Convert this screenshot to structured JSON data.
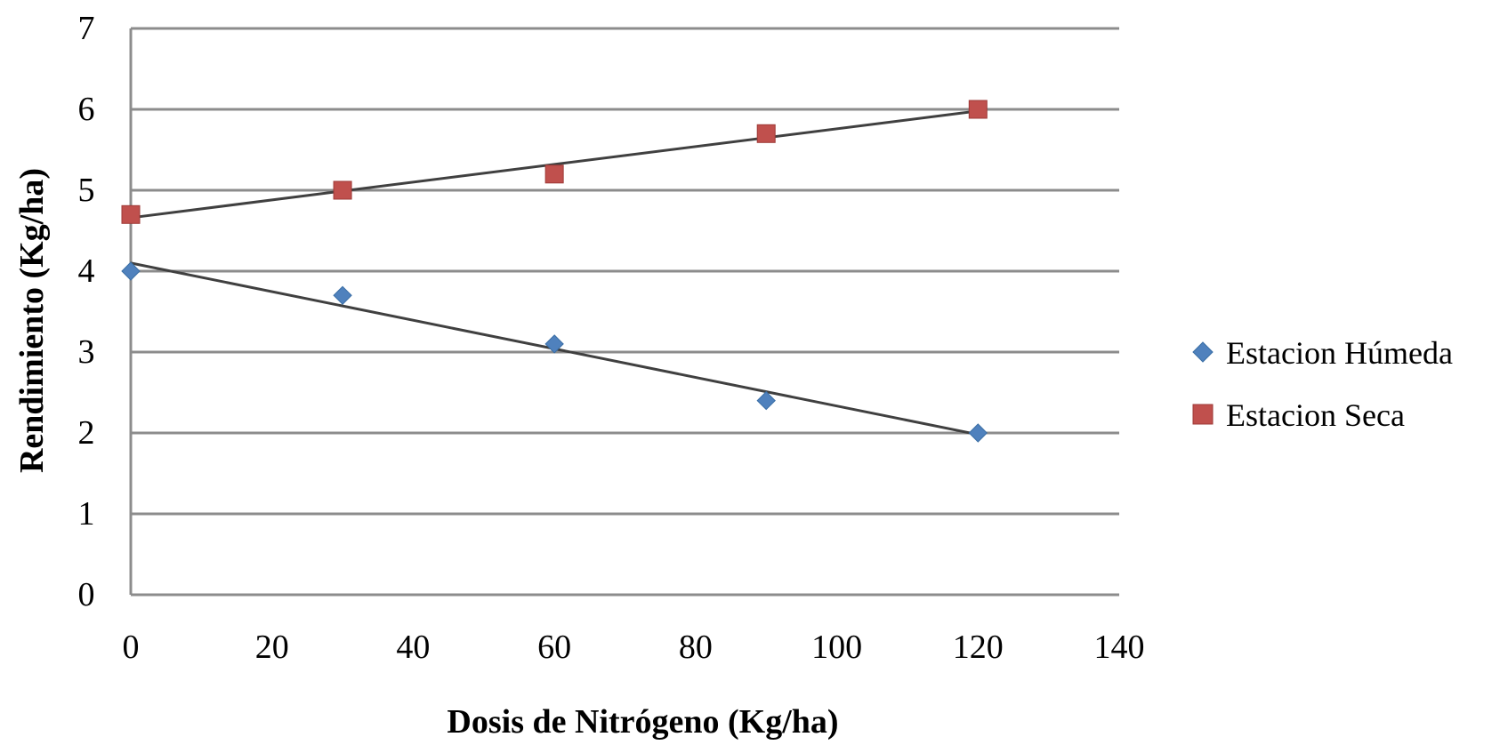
{
  "chart_data": {
    "type": "scatter",
    "title": "",
    "xlabel": "Dosis de Nitrógeno (Kg/ha)",
    "ylabel": "Rendimiento (Kg/ha)",
    "xlim": [
      0,
      140
    ],
    "ylim": [
      0,
      7
    ],
    "xticks": [
      "0",
      "20",
      "40",
      "60",
      "80",
      "100",
      "120",
      "140"
    ],
    "yticks": [
      "0",
      "1",
      "2",
      "3",
      "4",
      "5",
      "6",
      "7"
    ],
    "grid": "horizontal",
    "legend_position": "right",
    "series": [
      {
        "name": "Estacion Húmeda",
        "marker": "diamond",
        "color": "#4f81bd",
        "x": [
          0,
          30,
          60,
          90,
          120
        ],
        "y": [
          4.0,
          3.7,
          3.1,
          2.4,
          2.0
        ],
        "trendline": {
          "type": "linear",
          "color": "#404040"
        }
      },
      {
        "name": "Estacion Seca",
        "marker": "square",
        "color": "#c0504d",
        "x": [
          0,
          30,
          60,
          90,
          120
        ],
        "y": [
          4.7,
          5.0,
          5.2,
          5.7,
          6.0
        ],
        "trendline": {
          "type": "linear",
          "color": "#404040"
        }
      }
    ]
  }
}
